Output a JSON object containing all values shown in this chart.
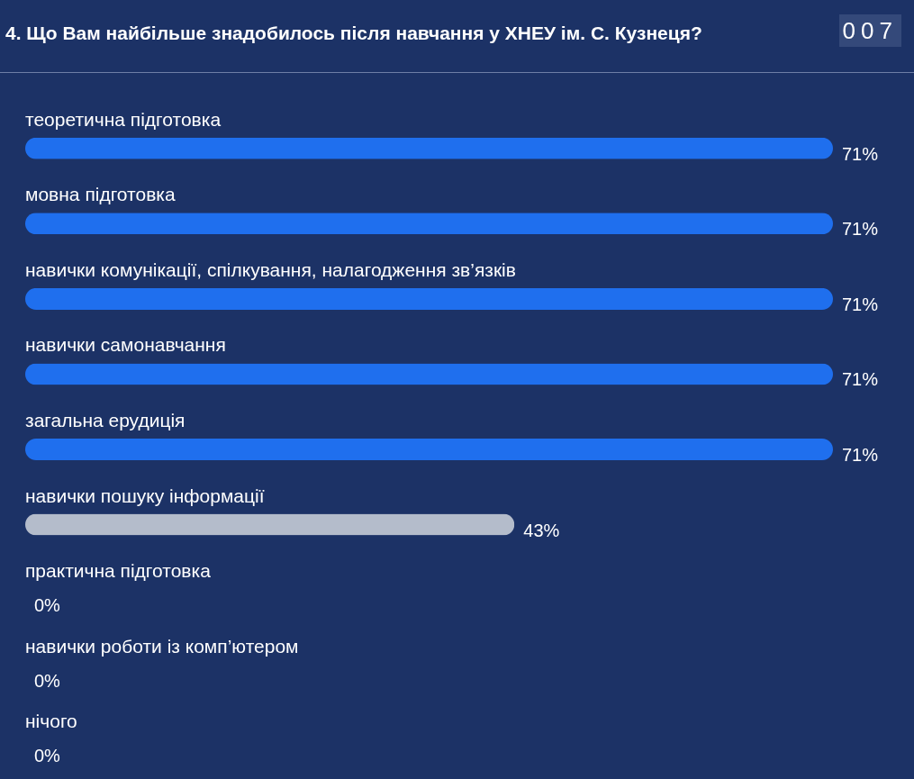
{
  "chart_data": {
    "type": "bar",
    "orientation": "horizontal",
    "title": "4. Що Вам найбільше знадобилось після навчання у ХНЕУ ім. С. Кузнеця?",
    "annotations": [
      "007"
    ],
    "categories": [
      "теоретична підготовка",
      "мовна підготовка",
      "навички комунікації, спілкування, налагодження зв’язків",
      "навички самонавчання",
      "загальна ерудиція",
      "навички пошуку інформації",
      "практична підготовка",
      "навички роботи із комп’ютером",
      "нічого"
    ],
    "values": [
      71,
      71,
      71,
      71,
      71,
      43,
      0,
      0,
      0
    ],
    "colors": [
      "#1f6fee",
      "#1f6fee",
      "#1f6fee",
      "#1f6fee",
      "#1f6fee",
      "#b4bccb",
      "#b4bccb",
      "#b4bccb",
      "#b4bccb"
    ],
    "value_labels": [
      "71%",
      "71%",
      "71%",
      "71%",
      "71%",
      "43%",
      "0%",
      "0%",
      "0%"
    ]
  }
}
